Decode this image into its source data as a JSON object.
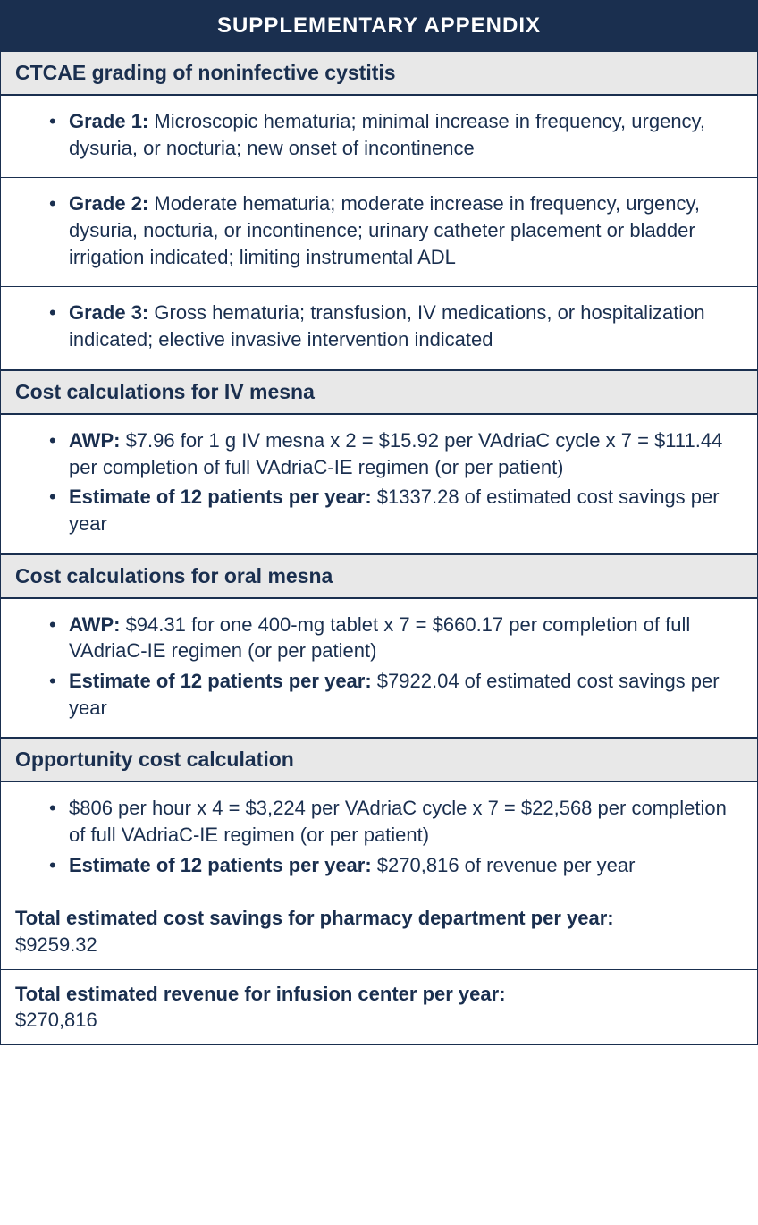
{
  "title": "SUPPLEMENTARY APPENDIX",
  "sections": [
    {
      "header": "CTCAE grading of noninfective cystitis",
      "rows": [
        {
          "items": [
            {
              "label": "Grade 1:",
              "text": " Microscopic hematuria; minimal increase in frequency, urgency, dysuria, or nocturia; new onset of incontinence"
            }
          ]
        },
        {
          "items": [
            {
              "label": "Grade 2:",
              "text": " Moderate hematuria; moderate increase in frequency, urgency, dysuria, nocturia, or incontinence; urinary catheter placement or bladder irrigation indicated; limiting instrumental ADL"
            }
          ]
        },
        {
          "items": [
            {
              "label": "Grade 3:",
              "text": " Gross hematuria; transfusion, IV medications, or hospitalization indicated; elective invasive intervention indicated"
            }
          ]
        }
      ]
    },
    {
      "header": "Cost calculations for IV mesna",
      "rows": [
        {
          "items": [
            {
              "label": "AWP:",
              "text": " $7.96 for 1 g IV mesna x 2 = $15.92 per VAdriaC cycle x 7 = $111.44 per completion of full VAdriaC-IE regimen (or per patient)"
            },
            {
              "label": "Estimate of 12 patients per year:",
              "text": " $1337.28 of estimated cost savings per year"
            }
          ]
        }
      ]
    },
    {
      "header": "Cost calculations for oral mesna",
      "rows": [
        {
          "items": [
            {
              "label": "AWP:",
              "text": " $94.31 for one 400-mg tablet x 7 = $660.17 per completion of full VAdriaC-IE regimen (or per patient)"
            },
            {
              "label": "Estimate of 12 patients per year:",
              "text": " $7922.04 of estimated cost savings per year"
            }
          ]
        }
      ]
    },
    {
      "header": "Opportunity cost calculation",
      "rows": [
        {
          "items": [
            {
              "label": "",
              "text": "$806 per hour x 4 = $3,224 per VAdriaC cycle x 7 = $22,568 per completion of full VAdriaC-IE regimen (or per patient)"
            },
            {
              "label": "Estimate of 12 patients per year:",
              "text": " $270,816 of revenue per year"
            }
          ]
        }
      ]
    }
  ],
  "totals": [
    {
      "label": "Total estimated cost savings for pharmacy department per year:",
      "value": "$9259.32"
    },
    {
      "label": "Total estimated revenue for infusion center per year:",
      "value": "$270,816"
    }
  ],
  "colors": {
    "header_bg": "#1a2f4f",
    "header_text": "#ffffff",
    "section_bg": "#e8e8e8",
    "text": "#1a2f4f",
    "border": "#1a2f4f"
  }
}
